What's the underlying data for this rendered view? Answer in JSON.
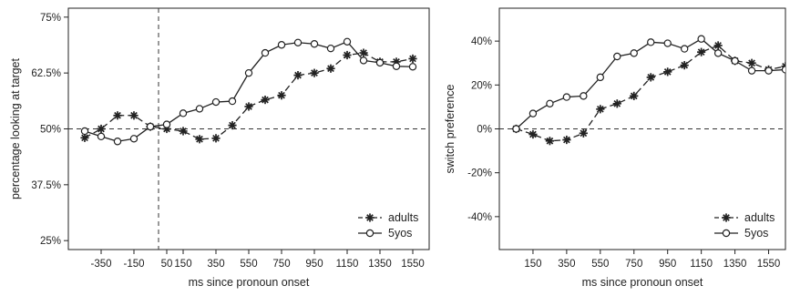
{
  "chart_data": [
    {
      "type": "line",
      "xlabel": "ms since pronoun onset",
      "ylabel": "percentage looking at target",
      "xlim": [
        -550,
        1650
      ],
      "ylim": [
        23,
        77
      ],
      "x_ticks": [
        -350,
        -150,
        50,
        150,
        350,
        550,
        750,
        950,
        1150,
        1350,
        1550
      ],
      "x_tick_labels": [
        "-350",
        "-150",
        "50",
        "150",
        "350",
        "550",
        "750",
        "950",
        "1150",
        "1350",
        "1550"
      ],
      "y_ticks": [
        25,
        37.5,
        50,
        62.5,
        75
      ],
      "y_tick_labels": [
        "25%",
        "37.5%",
        "50%",
        "62.5%",
        "75%"
      ],
      "reference_lines": {
        "horizontal_y": 50,
        "vertical_x": 0
      },
      "legend_position": "bottom-right",
      "series": [
        {
          "name": "adults",
          "marker": "asterisk",
          "line_style": "dashed",
          "x": [
            -450,
            -350,
            -250,
            -150,
            -50,
            50,
            150,
            250,
            350,
            450,
            550,
            650,
            750,
            850,
            950,
            1050,
            1150,
            1250,
            1350,
            1450,
            1550
          ],
          "y": [
            48,
            50,
            53,
            53,
            50.5,
            50,
            49.5,
            47.7,
            47.9,
            50.8,
            55,
            56.5,
            57.5,
            62,
            62.5,
            63.5,
            66.5,
            67,
            65,
            65,
            65.7
          ]
        },
        {
          "name": "5yos",
          "marker": "circle",
          "line_style": "solid",
          "x": [
            -450,
            -350,
            -250,
            -150,
            -50,
            50,
            150,
            250,
            350,
            450,
            550,
            650,
            750,
            850,
            950,
            1050,
            1150,
            1250,
            1350,
            1450,
            1550
          ],
          "y": [
            49.5,
            48.3,
            47.2,
            47.8,
            50.5,
            51,
            53.5,
            54.5,
            56,
            56.2,
            62.5,
            67,
            68.8,
            69.3,
            69,
            68,
            69.5,
            65.3,
            64.8,
            64,
            63.9
          ]
        }
      ]
    },
    {
      "type": "line",
      "xlabel": "ms since pronoun onset",
      "ylabel": "switch preference",
      "xlim": [
        -50,
        1650
      ],
      "ylim": [
        -55,
        55
      ],
      "x_ticks": [
        150,
        350,
        550,
        750,
        950,
        1150,
        1350,
        1550
      ],
      "x_tick_labels": [
        "150",
        "350",
        "550",
        "750",
        "950",
        "1150",
        "1350",
        "1550"
      ],
      "y_ticks": [
        -40,
        -20,
        0,
        20,
        40
      ],
      "y_tick_labels": [
        "-40%",
        "-20%",
        "0%",
        "20%",
        "40%"
      ],
      "reference_lines": {
        "horizontal_y": 0
      },
      "legend_position": "bottom-right",
      "series": [
        {
          "name": "adults",
          "marker": "asterisk",
          "line_style": "dashed",
          "x": [
            50,
            150,
            250,
            350,
            450,
            550,
            650,
            750,
            850,
            950,
            1050,
            1150,
            1250,
            1350,
            1450,
            1550,
            1650
          ],
          "y": [
            0,
            -2.5,
            -5.5,
            -5,
            -2,
            9,
            11.5,
            15,
            23.5,
            26,
            29,
            35,
            38,
            31,
            30,
            27,
            28.5
          ]
        },
        {
          "name": "5yos",
          "marker": "circle",
          "line_style": "solid",
          "x": [
            50,
            150,
            250,
            350,
            450,
            550,
            650,
            750,
            850,
            950,
            1050,
            1150,
            1250,
            1350,
            1450,
            1550,
            1650
          ],
          "y": [
            0,
            7,
            11.5,
            14.5,
            15,
            23.5,
            33,
            34.5,
            39.5,
            39,
            36.5,
            41,
            34.5,
            31,
            26.5,
            26.5,
            27
          ]
        }
      ]
    }
  ]
}
